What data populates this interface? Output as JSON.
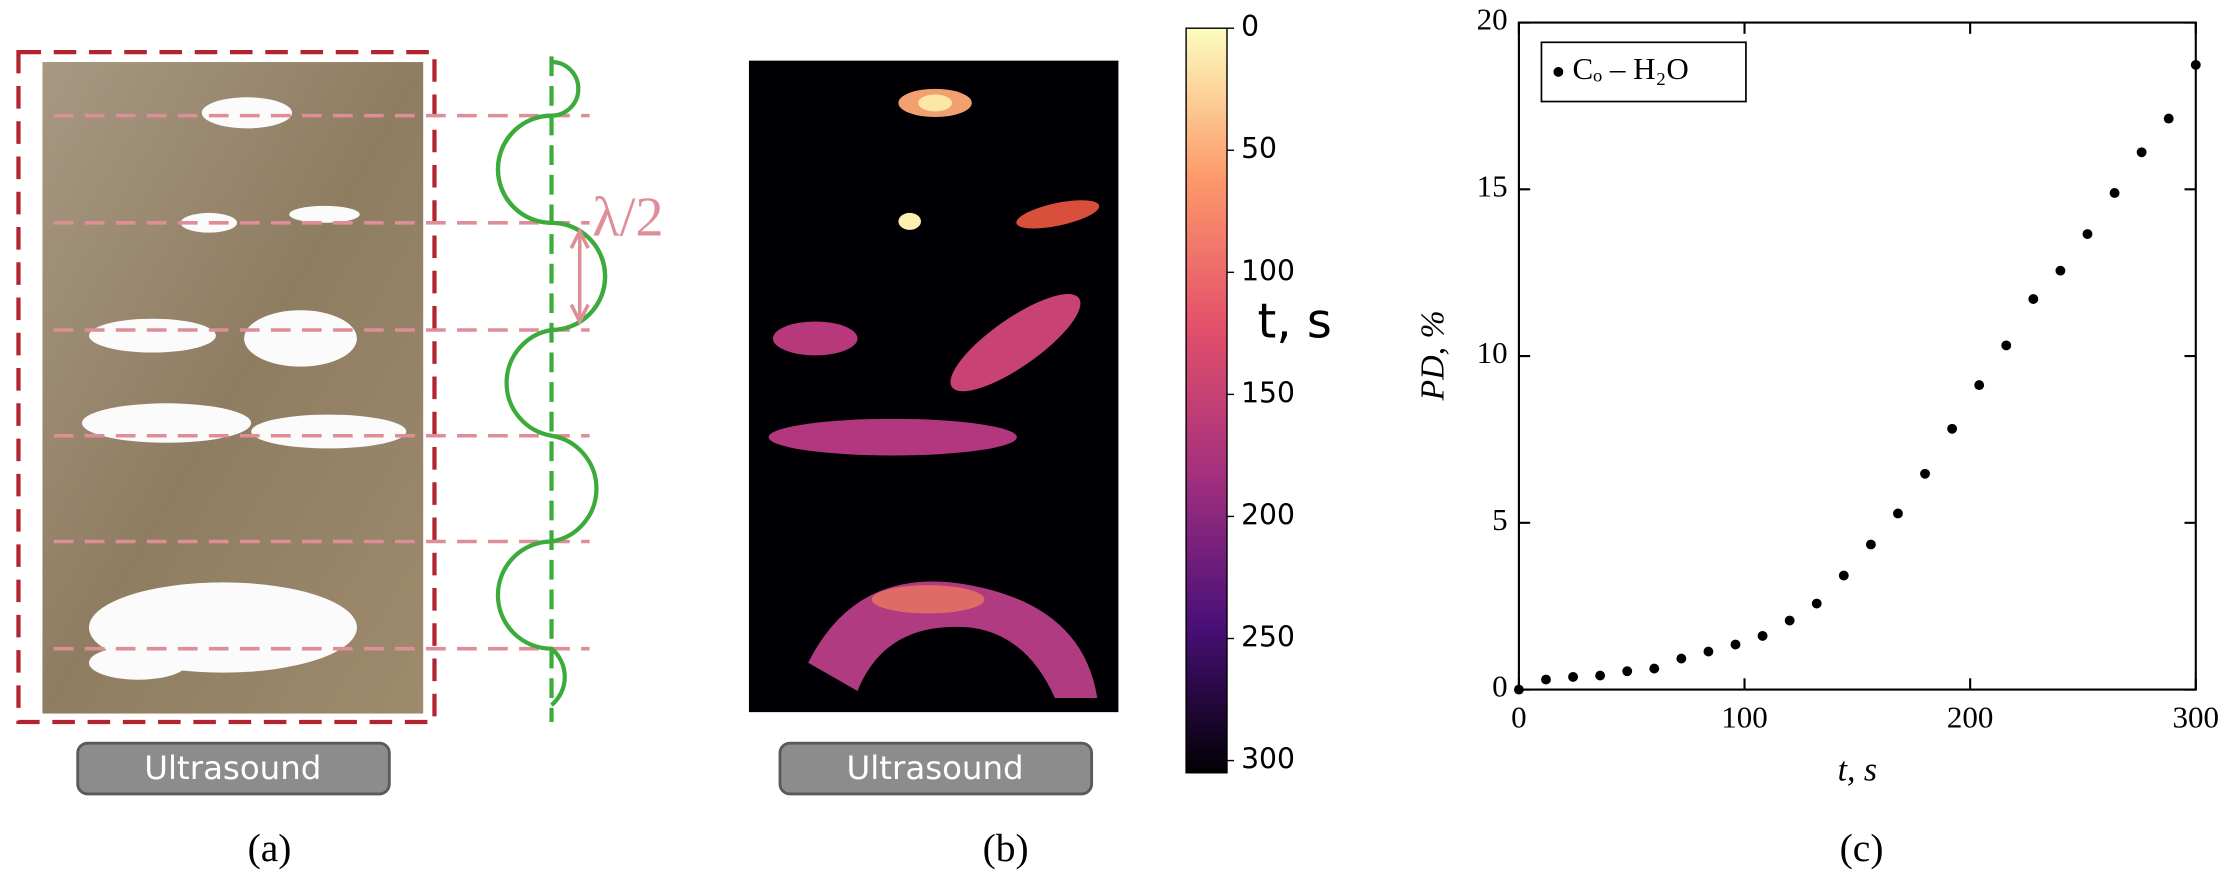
{
  "panels": {
    "a": {
      "annotation": "λ/2",
      "button": "Ultrasound",
      "caption": "(a)"
    },
    "b": {
      "button": "Ultrasound",
      "caption": "(b)",
      "colorbar": {
        "label": "t, s",
        "lim": [
          0,
          305
        ],
        "ticks": [
          0,
          50,
          100,
          150,
          200,
          250,
          300
        ]
      }
    },
    "c": {
      "caption": "(c)"
    }
  },
  "chart_data": {
    "type": "scatter",
    "x": [
      0,
      12,
      24,
      36,
      48,
      60,
      72,
      84,
      96,
      108,
      120,
      132,
      144,
      156,
      168,
      180,
      192,
      204,
      216,
      228,
      240,
      252,
      264,
      276,
      288,
      300
    ],
    "series": [
      {
        "name": "Cₒ – H₂O",
        "color": "#000000",
        "values": [
          0,
          0.3,
          0.38,
          0.42,
          0.55,
          0.63,
          0.93,
          1.14,
          1.35,
          1.61,
          2.07,
          2.58,
          3.42,
          4.35,
          5.28,
          6.47,
          7.82,
          9.13,
          10.32,
          11.71,
          12.56,
          13.66,
          14.89,
          16.11,
          17.12,
          18.73
        ]
      }
    ],
    "xlabel": "t, s",
    "ylabel": "PD, %",
    "xlim": [
      0,
      300
    ],
    "ylim": [
      0,
      20
    ],
    "xticks": [
      0,
      100,
      200,
      300
    ],
    "yticks": [
      0,
      5,
      10,
      15,
      20
    ],
    "legend": "upper left"
  }
}
